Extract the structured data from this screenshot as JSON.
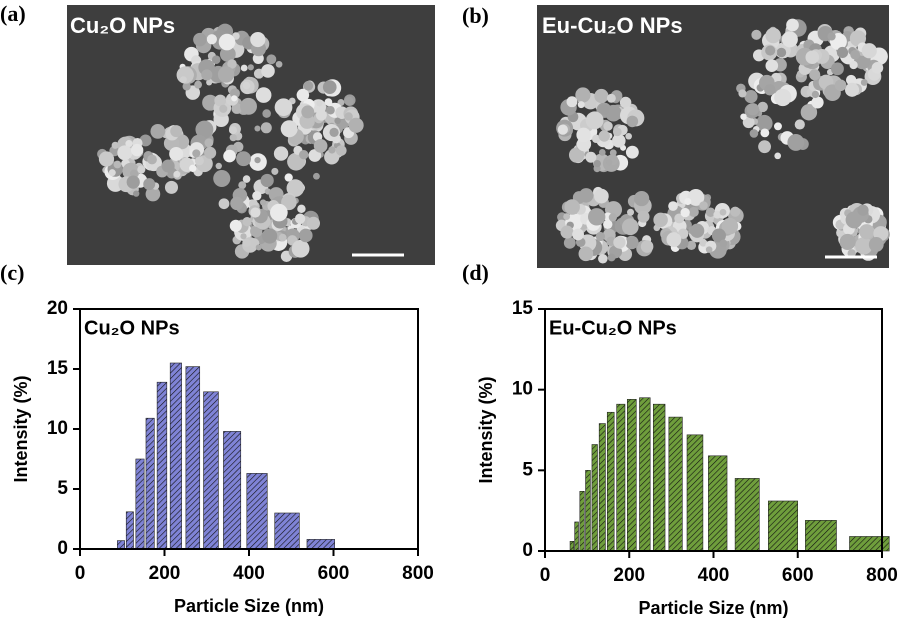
{
  "images": [
    {
      "panel": "(a)",
      "label": "Cu₂O NPs"
    },
    {
      "panel": "(b)",
      "label": "Eu-Cu₂O NPs"
    }
  ],
  "chart_data": [
    {
      "type": "bar",
      "panel": "(c)",
      "annotation": "Cu₂O NPs",
      "xlabel": "Particle Size (nm)",
      "ylabel": "Intensity (%)",
      "x": [
        97,
        118,
        142,
        166,
        194,
        227,
        267,
        310,
        360,
        419,
        490,
        570
      ],
      "values": [
        0.7,
        3.1,
        7.5,
        10.9,
        13.9,
        15.5,
        15.2,
        13.1,
        9.8,
        6.3,
        3.0,
        0.8
      ],
      "color": "#7f83d6",
      "xlim": [
        0,
        800
      ],
      "xticks": [
        0,
        200,
        400,
        600,
        800
      ],
      "ylim": [
        0,
        20
      ],
      "yticks": [
        0,
        5,
        10,
        15,
        20
      ]
    },
    {
      "type": "bar",
      "panel": "(d)",
      "annotation": "Eu-Cu₂O NPs",
      "xlabel": "Particle Size (nm)",
      "ylabel": "Intensity (%)",
      "x": [
        64,
        75,
        88,
        102,
        118,
        136,
        156,
        180,
        206,
        237,
        271,
        310,
        356,
        410,
        480,
        565,
        655,
        770
      ],
      "values": [
        0.6,
        1.8,
        3.7,
        5.0,
        6.6,
        7.9,
        8.6,
        9.1,
        9.4,
        9.5,
        9.1,
        8.3,
        7.2,
        5.9,
        4.5,
        3.1,
        1.9,
        0.9
      ],
      "color": "#6f9e3c",
      "xlim": [
        0,
        800
      ],
      "xticks": [
        0,
        200,
        400,
        600,
        800
      ],
      "ylim": [
        0,
        15
      ],
      "yticks": [
        0,
        5,
        10,
        15
      ]
    }
  ]
}
